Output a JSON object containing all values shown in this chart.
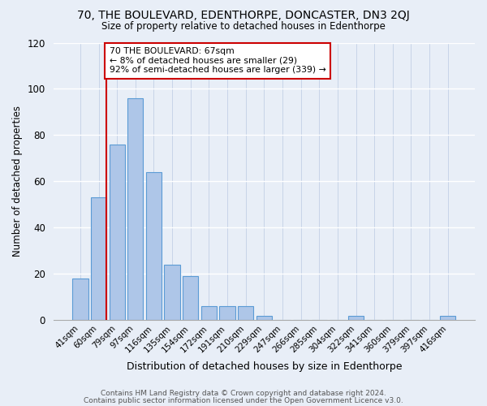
{
  "title1": "70, THE BOULEVARD, EDENTHORPE, DONCASTER, DN3 2QJ",
  "title2": "Size of property relative to detached houses in Edenthorpe",
  "xlabel": "Distribution of detached houses by size in Edenthorpe",
  "ylabel": "Number of detached properties",
  "bar_labels": [
    "41sqm",
    "60sqm",
    "79sqm",
    "97sqm",
    "116sqm",
    "135sqm",
    "154sqm",
    "172sqm",
    "191sqm",
    "210sqm",
    "229sqm",
    "247sqm",
    "266sqm",
    "285sqm",
    "304sqm",
    "322sqm",
    "341sqm",
    "360sqm",
    "379sqm",
    "397sqm",
    "416sqm"
  ],
  "bar_values": [
    18,
    53,
    76,
    96,
    64,
    24,
    19,
    6,
    6,
    6,
    2,
    0,
    0,
    0,
    0,
    2,
    0,
    0,
    0,
    0,
    2
  ],
  "bar_color": "#aec6e8",
  "bar_edge_color": "#5b9bd5",
  "ref_line_color": "#cc0000",
  "annotation_title": "70 THE BOULEVARD: 67sqm",
  "annotation_line1": "← 8% of detached houses are smaller (29)",
  "annotation_line2": "92% of semi-detached houses are larger (339) →",
  "annotation_box_color": "#ffffff",
  "annotation_box_edge": "#cc0000",
  "ylim": [
    0,
    120
  ],
  "yticks": [
    0,
    20,
    40,
    60,
    80,
    100,
    120
  ],
  "footer1": "Contains HM Land Registry data © Crown copyright and database right 2024.",
  "footer2": "Contains public sector information licensed under the Open Government Licence v3.0.",
  "bg_color": "#e8eef7"
}
